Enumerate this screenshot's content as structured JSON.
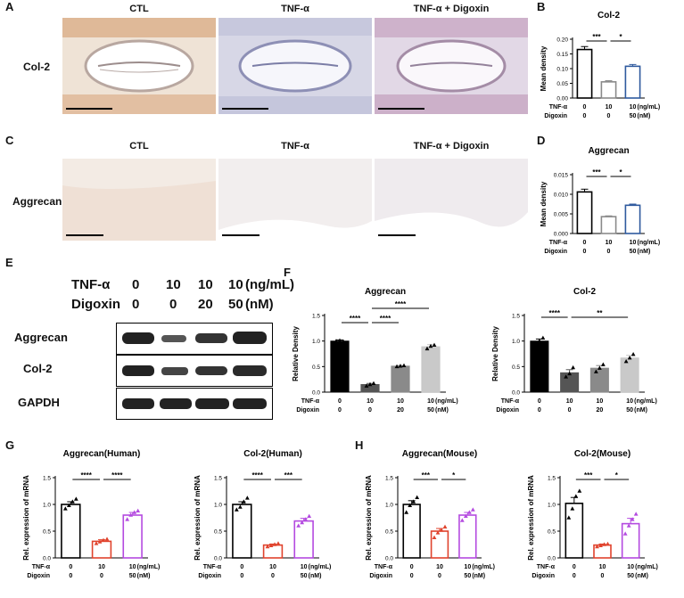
{
  "panels": {
    "A": "A",
    "B": "B",
    "C": "C",
    "D": "D",
    "E": "E",
    "F": "F",
    "G": "G",
    "H": "H"
  },
  "histology_A": {
    "columns": [
      "CTL",
      "TNF-α",
      "TNF-α + Digoxin"
    ],
    "row_label": "Col-2"
  },
  "histology_C": {
    "columns": [
      "CTL",
      "TNF-α",
      "TNF-α + Digoxin"
    ],
    "row_label": "Aggrecan"
  },
  "western": {
    "header": {
      "tnf_label": "TNF-α",
      "tnf_values": [
        "0",
        "10",
        "10",
        "10"
      ],
      "tnf_unit": "(ng/mL)",
      "dig_label": "Digoxin",
      "dig_values": [
        "0",
        "0",
        "20",
        "50"
      ],
      "dig_unit": "(nM)"
    },
    "rows": [
      "Aggrecan",
      "Col-2",
      "GAPDH"
    ]
  },
  "colors": {
    "black": "#000000",
    "gray": "#8a8a8a",
    "light_gray": "#c9c9c9",
    "blue": "#2f5a9e",
    "red": "#e0432d",
    "purple": "#b44ae0"
  },
  "chart_data": [
    {
      "id": "B",
      "type": "bar",
      "title": "Col-2",
      "ylabel": "Mean density",
      "ylim": [
        0,
        0.2
      ],
      "yticks": [
        "0.00",
        "0.05",
        "0.10",
        "0.15",
        "0.20"
      ],
      "bar_style": "outline",
      "categories": [
        "CTL",
        "TNF-α",
        "TNF-α + Digoxin"
      ],
      "values": [
        0.165,
        0.055,
        0.108
      ],
      "errors": [
        0.01,
        0.004,
        0.006
      ],
      "colors": [
        "#000000",
        "#8a8a8a",
        "#2f5a9e"
      ],
      "sig": [
        {
          "from": 0,
          "to": 1,
          "label": "***"
        },
        {
          "from": 1,
          "to": 2,
          "label": "*"
        }
      ],
      "cond_rows": [
        {
          "label": "TNF-α",
          "values": [
            "0",
            "10",
            "10"
          ],
          "unit": "(ng/mL)"
        },
        {
          "label": "Digoxin",
          "values": [
            "0",
            "0",
            "50"
          ],
          "unit": "(nM)"
        }
      ]
    },
    {
      "id": "D",
      "type": "bar",
      "title": "Aggrecan",
      "ylabel": "Mean density",
      "ylim": [
        0,
        0.015
      ],
      "yticks": [
        "0.000",
        "0.005",
        "0.010",
        "0.015"
      ],
      "bar_style": "outline",
      "categories": [
        "CTL",
        "TNF-α",
        "TNF-α + Digoxin"
      ],
      "values": [
        0.0106,
        0.0043,
        0.0072
      ],
      "errors": [
        0.0007,
        0.0002,
        0.0003
      ],
      "colors": [
        "#000000",
        "#8a8a8a",
        "#2f5a9e"
      ],
      "sig": [
        {
          "from": 0,
          "to": 1,
          "label": "***"
        },
        {
          "from": 1,
          "to": 2,
          "label": "*"
        }
      ],
      "cond_rows": [
        {
          "label": "TNF-α",
          "values": [
            "0",
            "10",
            "10"
          ],
          "unit": "(ng/mL)"
        },
        {
          "label": "Digoxin",
          "values": [
            "0",
            "0",
            "50"
          ],
          "unit": "(nM)"
        }
      ]
    },
    {
      "id": "F1",
      "type": "bar",
      "title": "Aggrecan",
      "ylabel": "Relative Density",
      "ylim": [
        0,
        1.5
      ],
      "yticks": [
        "0.0",
        "0.5",
        "1.0",
        "1.5"
      ],
      "bar_style": "filled",
      "categories": [
        "CTL",
        "TNF-α",
        "TNF-α + Digoxin 20",
        "TNF-α + Digoxin 50"
      ],
      "values": [
        1.0,
        0.15,
        0.51,
        0.89
      ],
      "errors": [
        0.02,
        0.02,
        0.01,
        0.04
      ],
      "points": [
        [
          1.0,
          1.01,
          0.99
        ],
        [
          0.12,
          0.15,
          0.17
        ],
        [
          0.5,
          0.51,
          0.52
        ],
        [
          0.85,
          0.9,
          0.92
        ]
      ],
      "colors": [
        "#000000",
        "#555555",
        "#8a8a8a",
        "#c9c9c9"
      ],
      "sig": [
        {
          "from": 0,
          "to": 1,
          "label": "****"
        },
        {
          "from": 1,
          "to": 2,
          "label": "****"
        },
        {
          "from": 1,
          "to": 3,
          "label": "****"
        }
      ],
      "cond_rows": [
        {
          "label": "TNF-α",
          "values": [
            "0",
            "10",
            "10",
            "10"
          ],
          "unit": "(ng/mL)"
        },
        {
          "label": "Digoxin",
          "values": [
            "0",
            "0",
            "20",
            "50"
          ],
          "unit": "(nM)"
        }
      ]
    },
    {
      "id": "F2",
      "type": "bar",
      "title": "Col-2",
      "ylabel": "Relative Density",
      "ylim": [
        0,
        1.5
      ],
      "yticks": [
        "0.0",
        "0.5",
        "1.0",
        "1.5"
      ],
      "bar_style": "filled",
      "categories": [
        "CTL",
        "TNF-α",
        "TNF-α + Digoxin 20",
        "TNF-α + Digoxin 50"
      ],
      "values": [
        1.0,
        0.38,
        0.47,
        0.67
      ],
      "errors": [
        0.04,
        0.06,
        0.05,
        0.05
      ],
      "points": [
        [
          0.95,
          1.0,
          1.06
        ],
        [
          0.3,
          0.36,
          0.48
        ],
        [
          0.4,
          0.47,
          0.54
        ],
        [
          0.6,
          0.67,
          0.74
        ]
      ],
      "colors": [
        "#000000",
        "#555555",
        "#8a8a8a",
        "#c9c9c9"
      ],
      "sig": [
        {
          "from": 0,
          "to": 1,
          "label": "****"
        },
        {
          "from": 1,
          "to": 3,
          "label": "**"
        }
      ],
      "cond_rows": [
        {
          "label": "TNF-α",
          "values": [
            "0",
            "10",
            "10",
            "10"
          ],
          "unit": "(ng/mL)"
        },
        {
          "label": "Digoxin",
          "values": [
            "0",
            "0",
            "20",
            "50"
          ],
          "unit": "(nM)"
        }
      ]
    },
    {
      "id": "G1",
      "type": "bar",
      "title": "Aggrecan(Human)",
      "ylabel": "Rel. expression of mRNA",
      "ylim": [
        0,
        1.5
      ],
      "yticks": [
        "0.0",
        "0.5",
        "1.0",
        "1.5"
      ],
      "bar_style": "outline",
      "categories": [
        "CTL",
        "TNF-α",
        "TNF-α + Digoxin"
      ],
      "values": [
        1.0,
        0.31,
        0.8
      ],
      "errors": [
        0.05,
        0.03,
        0.05
      ],
      "points": [
        [
          0.92,
          0.98,
          1.05,
          1.1
        ],
        [
          0.27,
          0.3,
          0.33,
          0.35
        ],
        [
          0.72,
          0.8,
          0.85,
          0.88
        ]
      ],
      "colors": [
        "#000000",
        "#e0432d",
        "#b44ae0"
      ],
      "sig": [
        {
          "from": 0,
          "to": 1,
          "label": "****"
        },
        {
          "from": 1,
          "to": 2,
          "label": "****"
        }
      ],
      "cond_rows": [
        {
          "label": "TNF-α",
          "values": [
            "0",
            "10",
            "10"
          ],
          "unit": "(ng/mL)"
        },
        {
          "label": "Digoxin",
          "values": [
            "0",
            "0",
            "50"
          ],
          "unit": "(nM)"
        }
      ]
    },
    {
      "id": "G2",
      "type": "bar",
      "title": "Col-2(Human)",
      "ylabel": "Rel. expression of mRNA",
      "ylim": [
        0,
        1.5
      ],
      "yticks": [
        "0.0",
        "0.5",
        "1.0",
        "1.5"
      ],
      "bar_style": "outline",
      "categories": [
        "CTL",
        "TNF-α",
        "TNF-α + Digoxin"
      ],
      "values": [
        1.0,
        0.24,
        0.69
      ],
      "errors": [
        0.05,
        0.02,
        0.05
      ],
      "points": [
        [
          0.9,
          0.95,
          1.05,
          1.12
        ],
        [
          0.21,
          0.23,
          0.25,
          0.27
        ],
        [
          0.6,
          0.66,
          0.72,
          0.78
        ]
      ],
      "colors": [
        "#000000",
        "#e0432d",
        "#b44ae0"
      ],
      "sig": [
        {
          "from": 0,
          "to": 1,
          "label": "****"
        },
        {
          "from": 1,
          "to": 2,
          "label": "***"
        }
      ],
      "cond_rows": [
        {
          "label": "TNF-α",
          "values": [
            "0",
            "10",
            "10"
          ],
          "unit": "(ng/mL)"
        },
        {
          "label": "Digoxin",
          "values": [
            "0",
            "0",
            "50"
          ],
          "unit": "(nM)"
        }
      ]
    },
    {
      "id": "H1",
      "type": "bar",
      "title": "Aggrecan(Mouse)",
      "ylabel": "Rel. expression of mRNA",
      "ylim": [
        0,
        1.5
      ],
      "yticks": [
        "0.0",
        "0.5",
        "1.0",
        "1.5"
      ],
      "bar_style": "outline",
      "categories": [
        "CTL",
        "TNF-α",
        "TNF-α + Digoxin"
      ],
      "values": [
        1.0,
        0.5,
        0.8
      ],
      "errors": [
        0.07,
        0.05,
        0.05
      ],
      "points": [
        [
          0.85,
          0.98,
          1.05,
          1.13
        ],
        [
          0.38,
          0.47,
          0.52,
          0.58
        ],
        [
          0.7,
          0.78,
          0.85,
          0.9
        ]
      ],
      "colors": [
        "#000000",
        "#e0432d",
        "#b44ae0"
      ],
      "sig": [
        {
          "from": 0,
          "to": 1,
          "label": "***"
        },
        {
          "from": 1,
          "to": 2,
          "label": "*"
        }
      ],
      "cond_rows": [
        {
          "label": "TNF-α",
          "values": [
            "0",
            "10",
            "10"
          ],
          "unit": "(ng/mL)"
        },
        {
          "label": "Digoxin",
          "values": [
            "0",
            "0",
            "50"
          ],
          "unit": "(nM)"
        }
      ]
    },
    {
      "id": "H2",
      "type": "bar",
      "title": "Col-2(Mouse)",
      "ylabel": "Rel. expression of mRNA",
      "ylim": [
        0,
        1.5
      ],
      "yticks": [
        "0.0",
        "0.5",
        "1.0",
        "1.5"
      ],
      "bar_style": "outline",
      "categories": [
        "CTL",
        "TNF-α",
        "TNF-α + Digoxin"
      ],
      "values": [
        1.02,
        0.24,
        0.64
      ],
      "errors": [
        0.11,
        0.02,
        0.1
      ],
      "points": [
        [
          0.75,
          0.92,
          1.15,
          1.25
        ],
        [
          0.21,
          0.23,
          0.25,
          0.26
        ],
        [
          0.45,
          0.6,
          0.72,
          0.82
        ]
      ],
      "colors": [
        "#000000",
        "#e0432d",
        "#b44ae0"
      ],
      "sig": [
        {
          "from": 0,
          "to": 1,
          "label": "***"
        },
        {
          "from": 1,
          "to": 2,
          "label": "*"
        }
      ],
      "cond_rows": [
        {
          "label": "TNF-α",
          "values": [
            "0",
            "10",
            "10"
          ],
          "unit": "(ng/mL)"
        },
        {
          "label": "Digoxin",
          "values": [
            "0",
            "0",
            "50"
          ],
          "unit": "(nM)"
        }
      ]
    }
  ]
}
